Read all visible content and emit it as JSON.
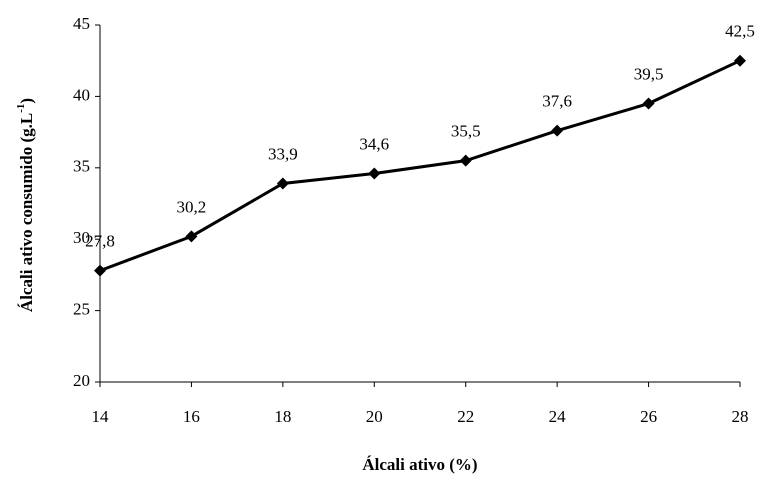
{
  "chart_data": {
    "type": "line",
    "x_label": "Álcali ativo (%)",
    "y_label": {
      "text": "Álcali ativo consumido  (g.L",
      "superscript": "-1",
      "suffix": ")"
    },
    "x": [
      14,
      16,
      18,
      20,
      22,
      24,
      26,
      28
    ],
    "series": [
      {
        "color": "#000000",
        "values": [
          27.8,
          30.2,
          33.9,
          34.6,
          35.5,
          37.6,
          39.5,
          42.5
        ],
        "value_labels": [
          "27,8",
          "30,2",
          "33,9",
          "34,6",
          "35,5",
          "37,6",
          "39,5",
          "42,5"
        ]
      }
    ],
    "xlim": [
      14,
      28
    ],
    "xticks": [
      14,
      16,
      18,
      20,
      22,
      24,
      26,
      28
    ],
    "ylim": [
      20,
      45
    ],
    "yticks": [
      20,
      25,
      30,
      35,
      40,
      45
    ],
    "grid": false
  }
}
